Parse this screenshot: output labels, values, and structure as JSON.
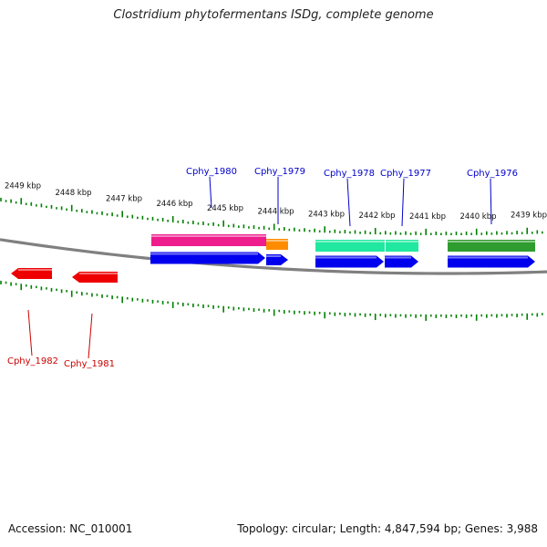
{
  "title": "Clostridium phytofermentans ISDg, complete genome",
  "footer": {
    "accession_label": "Accession:",
    "accession": "NC_010001",
    "topology_label": "Topology:",
    "topology": "circular",
    "length_label": "Length:",
    "length": "4,847,594 bp",
    "genes_label": "Genes:",
    "genes": "3,988"
  },
  "tick_labels": [
    "2449 kbp",
    "2448 kbp",
    "2447 kbp",
    "2446 kbp",
    "2445 kbp",
    "2444 kbp",
    "2443 kbp",
    "2442 kbp",
    "2441 kbp",
    "2440 kbp",
    "2439 kbp"
  ],
  "genes_top": [
    {
      "name": "Cphy_1980",
      "color": "#0000cc"
    },
    {
      "name": "Cphy_1979",
      "color": "#0000cc"
    },
    {
      "name": "Cphy_1978",
      "color": "#0000cc"
    },
    {
      "name": "Cphy_1977",
      "color": "#0000cc"
    },
    {
      "name": "Cphy_1976",
      "color": "#0000cc"
    }
  ],
  "genes_bottom": [
    {
      "name": "Cphy_1982",
      "color": "#cc0000"
    },
    {
      "name": "Cphy_1981",
      "color": "#cc0000"
    }
  ],
  "colors": {
    "forward_strand": "#0000ee",
    "reverse_strand": "#ee0000",
    "tick": "#008000",
    "backbone": "#808080",
    "feature_magenta": "#ee1c8c",
    "feature_orange": "#ff8c00",
    "feature_aquamarine": "#20e8a0",
    "feature_green": "#2e9c2e"
  }
}
